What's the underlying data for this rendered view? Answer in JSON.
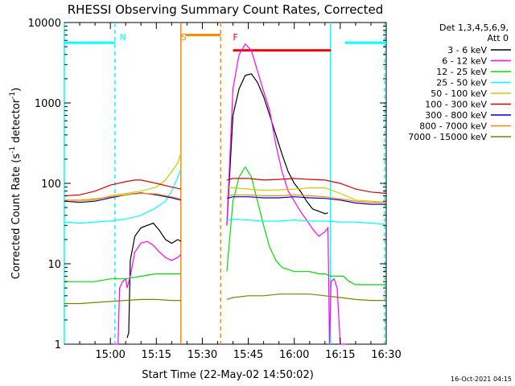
{
  "chart_data": {
    "type": "line",
    "title": "RHESSI Observing Summary Count Rates, Corrected",
    "xlabel": "Start Time (22-May-02 14:50:02)",
    "ylabel": "Corrected Count Rate (s",
    "ylabel_sup1": "-1",
    "ylabel_mid": " detector",
    "ylabel_sup2": "-1",
    "ylabel_end": ")",
    "footer": "16-Oct-2021 04:15",
    "y_scale": "log",
    "ylim": [
      1,
      10000
    ],
    "y_ticks": [
      {
        "value": 1,
        "label": "1"
      },
      {
        "value": 10,
        "label": "10"
      },
      {
        "value": 100,
        "label": "100"
      },
      {
        "value": 1000,
        "label": "1000"
      },
      {
        "value": 10000,
        "label": "10000"
      }
    ],
    "x_unit": "minutes after 14:50:02",
    "xlim": [
      -5,
      100
    ],
    "x_ticks": [
      {
        "value": 10,
        "label": "15:00"
      },
      {
        "value": 25,
        "label": "15:15"
      },
      {
        "value": 40,
        "label": "15:30"
      },
      {
        "value": 55,
        "label": "15:45"
      },
      {
        "value": 70,
        "label": "16:00"
      },
      {
        "value": 85,
        "label": "16:15"
      },
      {
        "value": 100,
        "label": "16:30"
      }
    ],
    "legend": {
      "position": "right",
      "title_line1": "Det 1,3,4,5,6,9,",
      "title_line2": "Att 0"
    },
    "series": [
      {
        "name": "3 - 6 keV",
        "color": "#000000",
        "points": [
          [
            15.5,
            1.2
          ],
          [
            16,
            1.4
          ],
          [
            16.5,
            11
          ],
          [
            18,
            22
          ],
          [
            20,
            28
          ],
          [
            22,
            30
          ],
          [
            24,
            32
          ],
          [
            26,
            26
          ],
          [
            28,
            20
          ],
          [
            30,
            18
          ],
          [
            32,
            20
          ],
          [
            33,
            19
          ],
          [
            48,
            30
          ],
          [
            50,
            700
          ],
          [
            52,
            1500
          ],
          [
            54,
            2200
          ],
          [
            56,
            2300
          ],
          [
            58,
            1800
          ],
          [
            60,
            1200
          ],
          [
            62,
            700
          ],
          [
            64,
            400
          ],
          [
            66,
            230
          ],
          [
            68,
            140
          ],
          [
            70,
            100
          ],
          [
            72,
            80
          ],
          [
            74,
            60
          ],
          [
            76,
            48
          ],
          [
            78,
            45
          ],
          [
            80,
            42
          ],
          [
            81,
            43
          ]
        ]
      },
      {
        "name": "6 - 12 keV",
        "color": "#ff00ff",
        "points": [
          [
            11,
            1
          ],
          [
            12.5,
            1
          ],
          [
            13,
            5
          ],
          [
            14,
            6
          ],
          [
            15,
            6.5
          ],
          [
            15.5,
            5
          ],
          [
            16,
            6
          ],
          [
            16.5,
            7
          ],
          [
            18,
            14
          ],
          [
            20,
            18
          ],
          [
            22,
            19
          ],
          [
            24,
            17
          ],
          [
            26,
            14
          ],
          [
            28,
            12
          ],
          [
            30,
            11
          ],
          [
            32,
            12
          ],
          [
            33,
            13
          ],
          [
            48,
            30
          ],
          [
            50,
            1500
          ],
          [
            52,
            4000
          ],
          [
            54,
            5400
          ],
          [
            56,
            4500
          ],
          [
            58,
            2500
          ],
          [
            60,
            1400
          ],
          [
            62,
            800
          ],
          [
            64,
            300
          ],
          [
            66,
            140
          ],
          [
            68,
            80
          ],
          [
            70,
            60
          ],
          [
            72,
            45
          ],
          [
            74,
            35
          ],
          [
            76,
            27
          ],
          [
            78,
            22
          ],
          [
            80,
            25
          ],
          [
            81,
            28
          ],
          [
            81.5,
            1
          ],
          [
            82,
            6
          ],
          [
            83,
            6.5
          ],
          [
            84,
            5
          ],
          [
            85,
            1
          ],
          [
            87,
            1
          ]
        ]
      },
      {
        "name": "12 - 25 keV",
        "color": "#00dd00",
        "points": [
          [
            -5,
            6
          ],
          [
            0,
            6
          ],
          [
            5,
            6
          ],
          [
            10,
            6.5
          ],
          [
            15,
            6.5
          ],
          [
            20,
            7
          ],
          [
            25,
            7.5
          ],
          [
            30,
            7.5
          ],
          [
            33,
            7.5
          ],
          [
            48,
            8
          ],
          [
            50,
            60
          ],
          [
            52,
            120
          ],
          [
            54,
            160
          ],
          [
            56,
            120
          ],
          [
            58,
            60
          ],
          [
            60,
            30
          ],
          [
            62,
            16
          ],
          [
            64,
            11
          ],
          [
            66,
            9
          ],
          [
            68,
            8.5
          ],
          [
            70,
            8
          ],
          [
            72,
            8
          ],
          [
            75,
            8
          ],
          [
            78,
            7.5
          ],
          [
            80,
            7.5
          ],
          [
            82,
            7
          ],
          [
            84,
            7
          ],
          [
            86,
            7
          ],
          [
            88,
            6
          ],
          [
            90,
            5.5
          ],
          [
            95,
            5.5
          ],
          [
            100,
            5.5
          ]
        ]
      },
      {
        "name": "25 - 50 keV",
        "color": "#00ffff",
        "points": [
          [
            -5,
            33
          ],
          [
            0,
            32
          ],
          [
            5,
            33
          ],
          [
            10,
            34
          ],
          [
            15,
            36
          ],
          [
            20,
            40
          ],
          [
            25,
            50
          ],
          [
            28,
            60
          ],
          [
            30,
            80
          ],
          [
            32,
            120
          ],
          [
            33,
            150
          ],
          [
            48,
            35
          ],
          [
            50,
            36
          ],
          [
            55,
            35
          ],
          [
            60,
            34
          ],
          [
            65,
            34
          ],
          [
            70,
            35
          ],
          [
            75,
            34
          ],
          [
            80,
            34
          ],
          [
            85,
            33
          ],
          [
            90,
            33
          ],
          [
            95,
            32
          ],
          [
            100,
            31
          ]
        ]
      },
      {
        "name": "50 - 100 keV",
        "color": "#cccc00",
        "points": [
          [
            -5,
            60
          ],
          [
            0,
            60
          ],
          [
            5,
            62
          ],
          [
            10,
            70
          ],
          [
            15,
            75
          ],
          [
            20,
            80
          ],
          [
            25,
            90
          ],
          [
            28,
            110
          ],
          [
            30,
            140
          ],
          [
            32,
            180
          ],
          [
            33,
            240
          ],
          [
            48,
            90
          ],
          [
            50,
            88
          ],
          [
            55,
            85
          ],
          [
            60,
            82
          ],
          [
            65,
            83
          ],
          [
            70,
            85
          ],
          [
            75,
            88
          ],
          [
            80,
            88
          ],
          [
            85,
            75
          ],
          [
            90,
            62
          ],
          [
            95,
            60
          ],
          [
            100,
            58
          ]
        ]
      },
      {
        "name": "100 - 300 keV",
        "color": "#dd0000",
        "points": [
          [
            -5,
            70
          ],
          [
            0,
            72
          ],
          [
            5,
            80
          ],
          [
            10,
            95
          ],
          [
            15,
            105
          ],
          [
            18,
            110
          ],
          [
            20,
            110
          ],
          [
            25,
            100
          ],
          [
            30,
            90
          ],
          [
            33,
            85
          ],
          [
            48,
            110
          ],
          [
            50,
            115
          ],
          [
            55,
            115
          ],
          [
            60,
            110
          ],
          [
            65,
            112
          ],
          [
            70,
            115
          ],
          [
            75,
            112
          ],
          [
            80,
            110
          ],
          [
            85,
            100
          ],
          [
            90,
            85
          ],
          [
            95,
            78
          ],
          [
            100,
            75
          ]
        ]
      },
      {
        "name": "300 - 800 keV",
        "color": "#0000cc",
        "points": [
          [
            -5,
            60
          ],
          [
            0,
            58
          ],
          [
            5,
            60
          ],
          [
            10,
            66
          ],
          [
            15,
            72
          ],
          [
            20,
            76
          ],
          [
            25,
            72
          ],
          [
            30,
            66
          ],
          [
            33,
            62
          ],
          [
            48,
            65
          ],
          [
            50,
            68
          ],
          [
            55,
            68
          ],
          [
            60,
            66
          ],
          [
            65,
            66
          ],
          [
            70,
            68
          ],
          [
            75,
            66
          ],
          [
            80,
            65
          ],
          [
            85,
            62
          ],
          [
            90,
            57
          ],
          [
            95,
            55
          ],
          [
            100,
            55
          ]
        ]
      },
      {
        "name": "800 - 7000 keV",
        "color": "#ff8800",
        "points": [
          [
            -5,
            62
          ],
          [
            0,
            62
          ],
          [
            5,
            64
          ],
          [
            10,
            68
          ],
          [
            15,
            72
          ],
          [
            20,
            75
          ],
          [
            25,
            74
          ],
          [
            30,
            68
          ],
          [
            33,
            64
          ],
          [
            48,
            70
          ],
          [
            50,
            72
          ],
          [
            55,
            72
          ],
          [
            60,
            70
          ],
          [
            65,
            70
          ],
          [
            70,
            72
          ],
          [
            75,
            70
          ],
          [
            80,
            68
          ],
          [
            85,
            64
          ],
          [
            90,
            60
          ],
          [
            95,
            58
          ],
          [
            100,
            58
          ]
        ]
      },
      {
        "name": "7000 - 15000 keV",
        "color": "#808000",
        "points": [
          [
            -5,
            3.2
          ],
          [
            0,
            3.2
          ],
          [
            5,
            3.3
          ],
          [
            10,
            3.4
          ],
          [
            15,
            3.5
          ],
          [
            20,
            3.6
          ],
          [
            25,
            3.6
          ],
          [
            30,
            3.5
          ],
          [
            33,
            3.5
          ],
          [
            48,
            3.6
          ],
          [
            50,
            3.8
          ],
          [
            55,
            4
          ],
          [
            60,
            4
          ],
          [
            65,
            4.2
          ],
          [
            70,
            4.2
          ],
          [
            75,
            4.2
          ],
          [
            80,
            4
          ],
          [
            85,
            3.8
          ],
          [
            90,
            3.6
          ],
          [
            95,
            3.5
          ],
          [
            100,
            3.5
          ]
        ]
      }
    ],
    "annotations": [
      {
        "label": "N",
        "color": "#00ffff",
        "x": 13
      },
      {
        "label": "S",
        "color": "#ff8800",
        "x": 33
      },
      {
        "label": "F",
        "color": "#ff0000",
        "x": 50
      }
    ],
    "night_bar": [
      {
        "x0": -5,
        "x1": 11.5,
        "y": 5600
      },
      {
        "x0": 86.5,
        "x1": 100,
        "y": 5600
      }
    ],
    "saa_bar": {
      "x0": 34.5,
      "x1": 46,
      "y": 7000
    },
    "flare_bar": {
      "x0": 50,
      "x1": 82,
      "y": 4500
    },
    "vlines": [
      {
        "x": -5,
        "color": "#00ffff",
        "style": "solid"
      },
      {
        "x": 11.5,
        "color": "#00ffff",
        "style": "dashed"
      },
      {
        "x": 33,
        "color": "#ff8800",
        "style": "solid"
      },
      {
        "x": 46,
        "color": "#ff8800",
        "style": "dashed"
      },
      {
        "x": 81.8,
        "color": "#00ffff",
        "style": "solid"
      },
      {
        "x": 99.5,
        "color": "#00ffff",
        "style": "dashed"
      }
    ]
  }
}
